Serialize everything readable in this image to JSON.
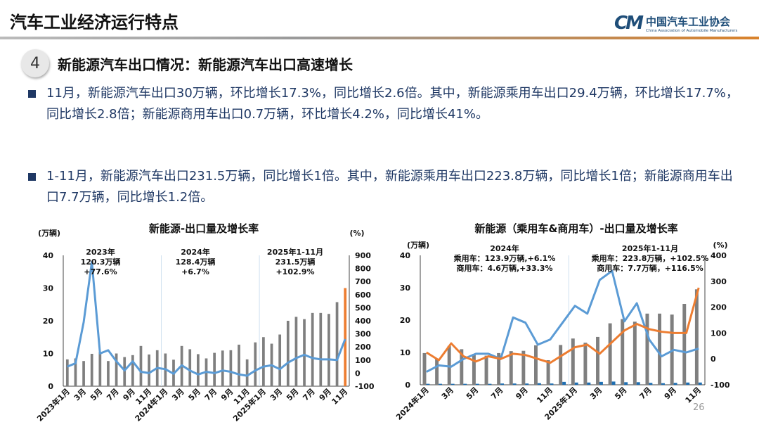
{
  "header": {
    "title": "汽车工业经济运行特点",
    "logo_cn": "中国汽车工业协会",
    "logo_en": "China Association of Automobile Manufacturers",
    "logo_mark": "CM"
  },
  "section": {
    "number": "4",
    "heading": "新能源汽车出口情况：新能源汽车出口高速增长"
  },
  "bullets": [
    "11月，新能源汽车出口30万辆，环比增长17.3%，同比增长2.6倍。其中，新能源乘用车出口29.4万辆，环比增长17.7%，同比增长2.8倍；新能源商用车出口0.7万辆，环比增长4.2%，同比增长41%。",
    "1-11月，新能源汽车出口231.5万辆，同比增长1倍。其中，新能源乘用车出口223.8万辆，同比增长1倍；新能源商用车出口7.7万辆，同比增长1.2倍。"
  ],
  "page_number": "26",
  "colors": {
    "bar": "#7f7f7f",
    "highlight_bar": "#ed7d31",
    "line_blue": "#5b9bd5",
    "line_orange": "#ed7d31",
    "small_bar": "#1f6fb2",
    "text": "#1f3864"
  },
  "chart_data": [
    {
      "type": "bar+line",
      "title": "新能源-出口量及增长率",
      "ylabel": "(万辆)",
      "y2label": "(%)",
      "ylim": [
        0,
        40
      ],
      "y2lim": [
        -100,
        900
      ],
      "yticks": [
        "0",
        "10",
        "20",
        "30",
        "40"
      ],
      "y2ticks": [
        "-100",
        "0",
        "100",
        "200",
        "300",
        "400",
        "500",
        "600",
        "700",
        "800",
        "900"
      ],
      "xticklabels": [
        "2023年1月",
        "3月",
        "5月",
        "7月",
        "9月",
        "11月",
        "2024年1月",
        "3月",
        "5月",
        "7月",
        "9月",
        "11月",
        "2025年1月",
        "3月",
        "5月",
        "7月",
        "9月",
        "11月"
      ],
      "categories": [
        "2023-01",
        "2023-02",
        "2023-03",
        "2023-04",
        "2023-05",
        "2023-06",
        "2023-07",
        "2023-08",
        "2023-09",
        "2023-10",
        "2023-11",
        "2023-12",
        "2024-01",
        "2024-02",
        "2024-03",
        "2024-04",
        "2024-05",
        "2024-06",
        "2024-07",
        "2024-08",
        "2024-09",
        "2024-10",
        "2024-11",
        "2024-12",
        "2025-01",
        "2025-02",
        "2025-03",
        "2025-04",
        "2025-05",
        "2025-06",
        "2025-07",
        "2025-08",
        "2025-09",
        "2025-10",
        "2025-11"
      ],
      "series": [
        {
          "kind": "bar",
          "axis": "left",
          "values": [
            8.2,
            8.5,
            7.7,
            9.9,
            10.5,
            7.7,
            10,
            8.9,
            9.5,
            12.3,
            9.7,
            11,
            10,
            8.1,
            12.3,
            11.3,
            9.8,
            8.5,
            10.2,
            10.9,
            11,
            12.7,
            8.2,
            13.4,
            15,
            13,
            15.8,
            20,
            21.2,
            20.5,
            22.4,
            22.4,
            22.1,
            25.7,
            30
          ],
          "highlight_last": true
        },
        {
          "kind": "line",
          "axis": "right",
          "color": "blue",
          "values": [
            50,
            75,
            390,
            850,
            150,
            175,
            90,
            20,
            90,
            10,
            0,
            40,
            30,
            -5,
            60,
            20,
            -10,
            10,
            0,
            20,
            10,
            -10,
            -20,
            20,
            50,
            60,
            30,
            80,
            115,
            140,
            115,
            105,
            105,
            100,
            260
          ]
        }
      ],
      "annotations": [
        [
          "2023年",
          "120.3万辆",
          "+77.6%"
        ],
        [
          "2024年",
          "128.4万辆",
          "+6.7%"
        ],
        [
          "2025年1-11月",
          "231.5万辆",
          "+102.9%"
        ]
      ]
    },
    {
      "type": "bar+line",
      "title": "新能源（乘用车&商用车）-出口量及增长率",
      "ylabel": "(万辆)",
      "y2label": "(%)",
      "ylim": [
        0,
        40
      ],
      "y2lim": [
        -100,
        400
      ],
      "yticks": [
        "0",
        "10",
        "20",
        "30",
        "40"
      ],
      "y2ticks": [
        "-100",
        "0",
        "100",
        "200",
        "300",
        "400"
      ],
      "xticklabels": [
        "2024年1月",
        "3月",
        "5月",
        "7月",
        "9月",
        "11月",
        "2025年1月",
        "3月",
        "5月",
        "7月",
        "9月",
        "11月"
      ],
      "categories": [
        "2024-01",
        "2024-02",
        "2024-03",
        "2024-04",
        "2024-05",
        "2024-06",
        "2024-07",
        "2024-08",
        "2024-09",
        "2024-10",
        "2024-11",
        "2024-12",
        "2025-01",
        "2025-02",
        "2025-03",
        "2025-04",
        "2025-05",
        "2025-06",
        "2025-07",
        "2025-08",
        "2025-09",
        "2025-10",
        "2025-11"
      ],
      "series": [
        {
          "kind": "bar",
          "axis": "left",
          "color": "gray",
          "values": [
            9.8,
            8,
            12,
            11,
            9.5,
            9,
            9.8,
            10.4,
            10.5,
            12.2,
            7.6,
            12.3,
            14.3,
            13,
            14.8,
            19,
            20.3,
            19.5,
            22,
            22,
            21.7,
            25,
            29.5
          ]
        },
        {
          "kind": "bar",
          "axis": "left",
          "color": "darkblue",
          "values": [
            0.3,
            0.3,
            0.3,
            0.3,
            0.3,
            0.3,
            0.4,
            0.4,
            0.4,
            0.5,
            0.4,
            0.9,
            0.7,
            0.7,
            0.9,
            1,
            0.8,
            0.8,
            0.6,
            0.5,
            0.6,
            0.7,
            0.7
          ]
        },
        {
          "kind": "line",
          "axis": "right",
          "color": "blue",
          "values": [
            -50,
            -25,
            -30,
            0,
            20,
            20,
            0,
            160,
            140,
            55,
            75,
            140,
            205,
            175,
            305,
            340,
            145,
            215,
            75,
            10,
            35,
            25,
            40
          ]
        },
        {
          "kind": "line",
          "axis": "right",
          "color": "orange",
          "values": [
            25,
            -5,
            60,
            10,
            -10,
            10,
            0,
            20,
            15,
            0,
            -15,
            15,
            45,
            55,
            20,
            65,
            110,
            135,
            115,
            105,
            100,
            100,
            275
          ]
        }
      ],
      "annotations": [
        [
          "2024年",
          "乘用车：123.9万辆,+6.1%",
          "商用车：4.6万辆,+33.3%"
        ],
        [
          "2025年1-11月",
          "乘用车：223.8万辆，+102.5%",
          "商用车：7.7万辆，+116.5%"
        ]
      ]
    }
  ]
}
